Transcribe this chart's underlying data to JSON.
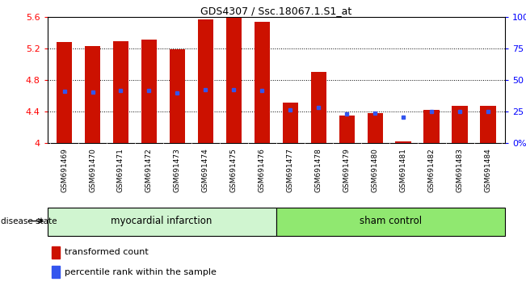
{
  "title": "GDS4307 / Ssc.18067.1.S1_at",
  "samples": [
    "GSM691469",
    "GSM691470",
    "GSM691471",
    "GSM691472",
    "GSM691473",
    "GSM691474",
    "GSM691475",
    "GSM691476",
    "GSM691477",
    "GSM691478",
    "GSM691479",
    "GSM691480",
    "GSM691481",
    "GSM691482",
    "GSM691483",
    "GSM691484"
  ],
  "red_values": [
    5.28,
    5.23,
    5.29,
    5.31,
    5.19,
    5.57,
    5.59,
    5.54,
    4.51,
    4.9,
    4.35,
    4.38,
    4.02,
    4.42,
    4.47,
    4.47
  ],
  "blue_values": [
    4.66,
    4.65,
    4.67,
    4.67,
    4.64,
    4.68,
    4.68,
    4.67,
    4.42,
    4.45,
    4.37,
    4.38,
    4.33,
    4.4,
    4.4,
    4.4
  ],
  "baseline": 4.0,
  "ylim_left": [
    4.0,
    5.6
  ],
  "ylim_right": [
    0,
    100
  ],
  "yticks_left": [
    4.0,
    4.4,
    4.8,
    5.2,
    5.6
  ],
  "yticks_right": [
    0,
    25,
    50,
    75,
    100
  ],
  "ytick_labels_right": [
    "0",
    "25",
    "50",
    "75",
    "100%"
  ],
  "ytick_labels_left": [
    "4",
    "4.4",
    "4.8",
    "5.2",
    "5.6"
  ],
  "group1_label": "myocardial infarction",
  "group2_label": "sham control",
  "group1_count": 8,
  "group2_count": 8,
  "bar_color": "#cc1100",
  "blue_color": "#3355ee",
  "gray_bg": "#d0d0d0",
  "group1_color": "#d0f5d0",
  "group2_color": "#90e870",
  "legend_red": "transformed count",
  "legend_blue": "percentile rank within the sample",
  "bar_width": 0.55
}
